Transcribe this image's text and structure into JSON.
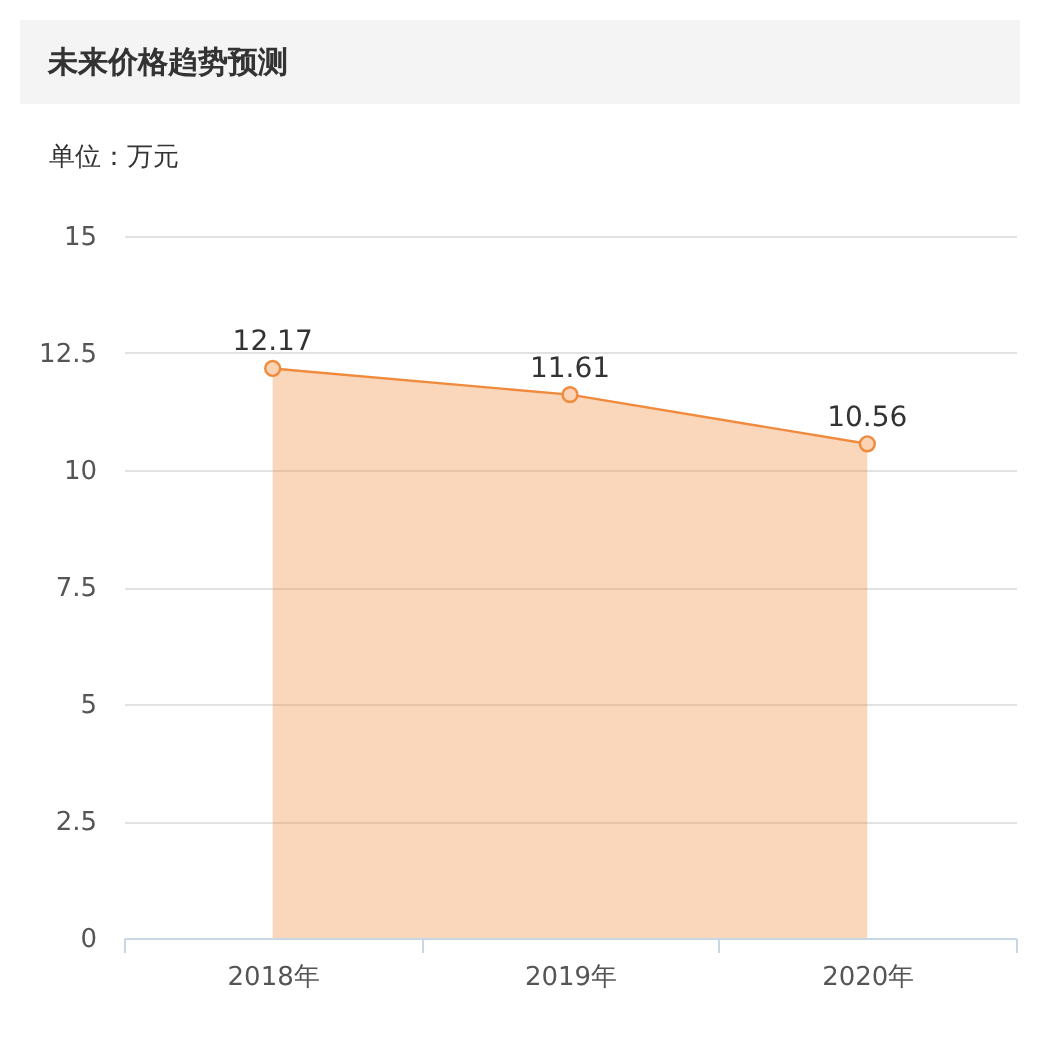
{
  "chart_data": {
    "type": "area",
    "title": "未来价格趋势预测",
    "ylabel": "单位：万元",
    "categories": [
      "2018年",
      "2019年",
      "2020年"
    ],
    "series": [
      {
        "color": "#f08a3c",
        "values": [
          12.17,
          11.61,
          10.56
        ]
      }
    ],
    "ylim": [
      0,
      15
    ],
    "yticks": [
      0,
      2.5,
      5,
      7.5,
      10,
      12.5,
      15
    ],
    "grid": "y",
    "marker": "circle",
    "data_labels": true
  }
}
